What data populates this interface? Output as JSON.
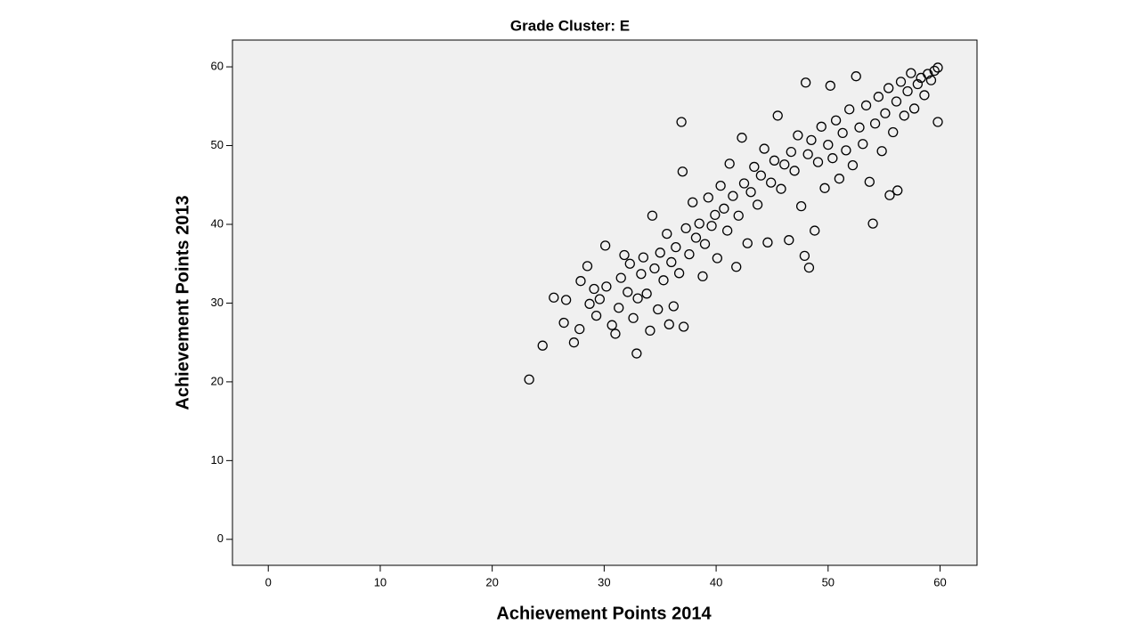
{
  "chart_data": {
    "type": "scatter",
    "title": "Grade Cluster: E",
    "x_label": "Achievement Points 2014",
    "y_label": "Achievement Points 2013",
    "xlim": [
      -3.2,
      63.3
    ],
    "ylim": [
      -3.3,
      63.4
    ],
    "xticks": [
      0,
      10,
      20,
      30,
      40,
      50,
      60
    ],
    "yticks": [
      0,
      10,
      20,
      30,
      40,
      50,
      60
    ],
    "color": "#000000",
    "x": [
      23.3,
      24.5,
      25.5,
      26.4,
      26.6,
      27.3,
      27.8,
      27.9,
      28.5,
      28.7,
      29.1,
      29.3,
      29.6,
      30.1,
      30.2,
      30.7,
      31,
      31.3,
      31.5,
      31.8,
      32.1,
      32.3,
      32.6,
      32.9,
      33,
      33.3,
      33.5,
      33.8,
      34.1,
      34.3,
      34.5,
      34.8,
      35,
      35.3,
      35.6,
      35.8,
      36,
      36.2,
      36.4,
      36.7,
      36.9,
      37,
      37.1,
      37.3,
      37.6,
      37.9,
      38.2,
      38.5,
      38.8,
      39,
      39.3,
      39.6,
      39.9,
      40.1,
      40.4,
      40.7,
      41,
      41.2,
      41.5,
      41.8,
      42,
      42.3,
      42.5,
      42.8,
      43.1,
      43.4,
      43.7,
      44,
      44.3,
      44.6,
      44.9,
      45.2,
      45.5,
      45.8,
      46.1,
      46.5,
      46.7,
      47,
      47.3,
      47.6,
      47.9,
      48,
      48.2,
      48.3,
      48.5,
      48.8,
      49.1,
      49.4,
      49.7,
      50,
      50.2,
      50.4,
      50.7,
      51,
      51.3,
      51.6,
      51.9,
      52.2,
      52.5,
      52.8,
      53.1,
      53.4,
      53.7,
      54,
      54.2,
      54.5,
      54.8,
      55.1,
      55.4,
      55.5,
      55.8,
      56.1,
      56.2,
      56.5,
      56.8,
      57.1,
      57.4,
      57.7,
      58,
      58.3,
      58.6,
      58.9,
      59.2,
      59.5,
      59.8,
      59.8
    ],
    "values": [
      20.3,
      24.6,
      30.7,
      27.5,
      30.4,
      25,
      26.7,
      32.8,
      34.7,
      29.9,
      31.8,
      28.4,
      30.5,
      37.3,
      32.1,
      27.2,
      26.1,
      29.4,
      33.2,
      36.1,
      31.4,
      35,
      28.1,
      23.6,
      30.6,
      33.7,
      35.8,
      31.2,
      26.5,
      41.1,
      34.4,
      29.2,
      36.4,
      32.9,
      38.8,
      27.3,
      35.2,
      29.6,
      37.1,
      33.8,
      53,
      46.7,
      27,
      39.5,
      36.2,
      42.8,
      38.3,
      40.1,
      33.4,
      37.5,
      43.4,
      39.8,
      41.2,
      35.7,
      44.9,
      42,
      39.2,
      47.7,
      43.6,
      34.6,
      41.1,
      51,
      45.2,
      37.6,
      44.1,
      47.3,
      42.5,
      46.2,
      49.6,
      37.7,
      45.3,
      48.1,
      53.8,
      44.5,
      47.6,
      38,
      49.2,
      46.8,
      51.3,
      42.3,
      36,
      58,
      48.9,
      34.5,
      50.7,
      39.2,
      47.9,
      52.4,
      44.6,
      50.1,
      57.6,
      48.4,
      53.2,
      45.8,
      51.6,
      49.4,
      54.6,
      47.5,
      58.8,
      52.3,
      50.2,
      55.1,
      45.4,
      40.1,
      52.8,
      56.2,
      49.3,
      54.1,
      57.3,
      43.7,
      51.7,
      55.6,
      44.3,
      58.1,
      53.8,
      56.9,
      59.2,
      54.7,
      57.8,
      58.6,
      56.4,
      59.1,
      58.3,
      59.5,
      53,
      59.9
    ]
  }
}
